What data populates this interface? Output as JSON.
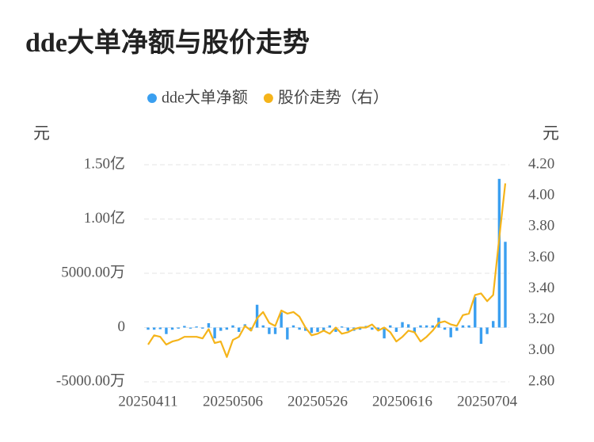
{
  "chart_data": {
    "type": "bar-line",
    "title": "dde大单净额与股价走势",
    "y_label": "元",
    "y2_label": "元",
    "categories": [
      "20250411",
      null,
      null,
      null,
      null,
      null,
      null,
      null,
      null,
      null,
      null,
      null,
      null,
      null,
      "20250506",
      null,
      null,
      null,
      null,
      null,
      null,
      null,
      null,
      null,
      null,
      null,
      null,
      null,
      "20250526",
      null,
      null,
      null,
      null,
      null,
      null,
      null,
      null,
      null,
      null,
      null,
      null,
      null,
      "20250616",
      null,
      null,
      null,
      null,
      null,
      null,
      null,
      null,
      null,
      null,
      null,
      null,
      null,
      "20250704",
      null,
      null,
      null
    ],
    "series": [
      {
        "name": "dde大单净额",
        "type": "bar",
        "color": "#3a9ff0",
        "values": [
          -200,
          -200,
          -150,
          -600,
          -200,
          -100,
          150,
          -100,
          100,
          -100,
          400,
          -1000,
          -300,
          -200,
          200,
          -400,
          300,
          -300,
          2100,
          200,
          -600,
          -600,
          1400,
          -1100,
          200,
          -200,
          -300,
          -500,
          -400,
          -300,
          200,
          -400,
          100,
          -300,
          -300,
          -200,
          150,
          -200,
          -300,
          -1000,
          200,
          -400,
          500,
          300,
          -500,
          200,
          200,
          200,
          900,
          -200,
          -900,
          -300,
          200,
          200,
          2800,
          -1500,
          -600,
          600,
          13700,
          7900
        ]
      },
      {
        "name": "股价走势（右）",
        "type": "line",
        "axis": "y2",
        "color": "#f5b41a",
        "values": [
          3.04,
          3.1,
          3.09,
          3.04,
          3.06,
          3.07,
          3.09,
          3.09,
          3.09,
          3.08,
          3.14,
          3.05,
          3.06,
          2.96,
          3.07,
          3.09,
          3.16,
          3.13,
          3.21,
          3.25,
          3.18,
          3.16,
          3.26,
          3.24,
          3.25,
          3.22,
          3.15,
          3.1,
          3.11,
          3.13,
          3.11,
          3.15,
          3.11,
          3.12,
          3.14,
          3.15,
          3.15,
          3.17,
          3.13,
          3.15,
          3.12,
          3.06,
          3.09,
          3.13,
          3.12,
          3.06,
          3.09,
          3.13,
          3.18,
          3.19,
          3.17,
          3.16,
          3.23,
          3.24,
          3.36,
          3.37,
          3.32,
          3.36,
          3.73,
          4.08
        ]
      }
    ],
    "ylim": [
      -5000,
      15000
    ],
    "yticks": [
      {
        "value": -5000,
        "label": "-5000.00万"
      },
      0,
      {
        "value": 5000,
        "label": "5000.00万"
      },
      {
        "value": 10000,
        "label": "1.00亿"
      },
      {
        "value": 15000,
        "label": "1.50亿"
      }
    ],
    "y2lim": [
      2.8,
      4.2
    ],
    "y2ticks": [
      {
        "value": 2.8,
        "label": "2.80"
      },
      {
        "value": 3.0,
        "label": "3.00"
      },
      {
        "value": 3.2,
        "label": "3.20"
      },
      {
        "value": 3.4,
        "label": "3.40"
      },
      {
        "value": 3.6,
        "label": "3.60"
      },
      {
        "value": 3.8,
        "label": "3.80"
      },
      {
        "value": 4.0,
        "label": "4.00"
      },
      {
        "value": 4.2,
        "label": "4.20"
      }
    ],
    "grid": true
  }
}
